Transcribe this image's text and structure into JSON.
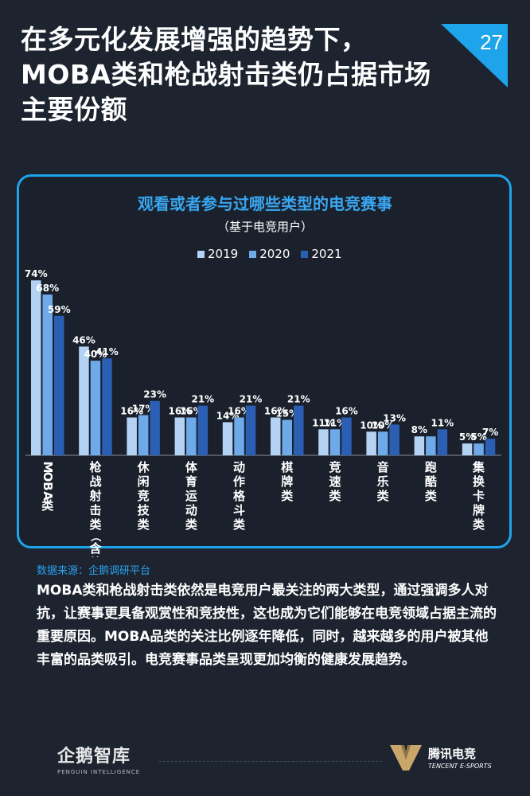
{
  "headline": "在多元化发展增强的趋势下，MOBA类和枪战射击类仍占据市场主要份额",
  "page_number": "27",
  "colors": {
    "background": "#1d2430",
    "accent": "#1ea4ea",
    "series_2019": "#b4d3f4",
    "series_2020": "#6ea9ea",
    "series_2021": "#2a5fb4"
  },
  "chart_data": {
    "type": "bar",
    "title": "观看或者参与过哪些类型的电竞赛事",
    "subtitle": "（基于电竞用户）",
    "categories": [
      "MOBA类",
      "枪战射击类（含战术竞技类）",
      "休闲竞技类",
      "体育运动类",
      "动作格斗类",
      "棋牌类",
      "竞速类",
      "音乐类",
      "跑酷类",
      "集换卡牌类"
    ],
    "series": [
      {
        "name": "2019",
        "values": [
          74,
          46,
          16,
          16,
          14,
          16,
          11,
          10,
          8,
          5
        ]
      },
      {
        "name": "2020",
        "values": [
          68,
          40,
          17,
          16,
          16,
          15,
          11,
          10,
          8,
          5
        ]
      },
      {
        "name": "2021",
        "values": [
          59,
          41,
          23,
          21,
          21,
          21,
          16,
          13,
          11,
          7
        ]
      }
    ],
    "value_labels": [
      [
        "74%",
        "46%",
        "16%",
        "16%",
        "14%",
        "16%",
        "11%",
        "10%",
        "8%",
        "5%"
      ],
      [
        "68%",
        "40%",
        "17%",
        "16%",
        "16%",
        "15%",
        "11%",
        "10%",
        "",
        "5%"
      ],
      [
        "59%",
        "41%",
        "23%",
        "21%",
        "21%",
        "21%",
        "16%",
        "13%",
        "11%",
        "7%"
      ]
    ],
    "ylim": [
      0,
      80
    ],
    "grid": false,
    "legend_position": "top-center"
  },
  "source": "数据来源：企鹅调研平台",
  "body_text": "MOBA类和枪战射击类依然是电竞用户最关注的两大类型，通过强调多人对抗，让赛事更具备观赏性和竞技性，这也成为它们能够在电竞领域占据主流的重要原因。MOBA品类的关注比例逐年降低，同时，越来越多的用户被其他丰富的品类吸引。电竞赛事品类呈现更加均衡的健康发展趋势。",
  "footer": {
    "left_logo_cn": "企鹅智库",
    "left_logo_en": "PENGUIN INTELLIGENCE",
    "right_logo_cn": "腾讯电竞",
    "right_logo_en": "TENCENT E-SPORTS"
  }
}
